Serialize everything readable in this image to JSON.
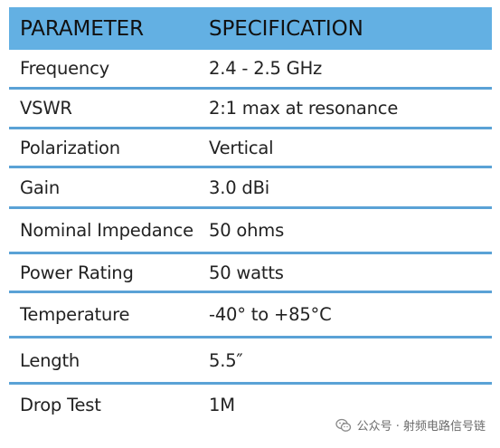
{
  "table": {
    "header": {
      "parameter": "PARAMETER",
      "specification": "SPECIFICATION"
    },
    "rows": [
      {
        "parameter": "Frequency",
        "specification": "2.4 - 2.5 GHz"
      },
      {
        "parameter": "VSWR",
        "specification": "2:1 max at resonance"
      },
      {
        "parameter": "Polarization",
        "specification": "Vertical"
      },
      {
        "parameter": "Gain",
        "specification": "3.0 dBi"
      },
      {
        "parameter": "Nominal Impedance",
        "specification": "50 ohms"
      },
      {
        "parameter": "Power Rating",
        "specification": "50 watts"
      },
      {
        "parameter": "Temperature",
        "specification": "-40° to +85°C"
      },
      {
        "parameter": "Length",
        "specification": "5.5″"
      },
      {
        "parameter": "Drop Test",
        "specification": "1M"
      }
    ]
  },
  "watermark": {
    "icon": "wechat-icon",
    "text": "公众号 · 射频电路信号链"
  },
  "colors": {
    "header_bg": "#63b0e3",
    "row_divider": "#5aa2d6"
  }
}
